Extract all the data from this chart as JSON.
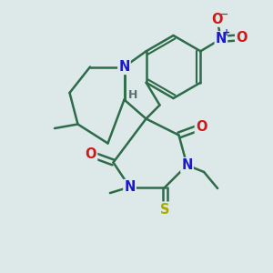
{
  "bg_color": "#dde8e8",
  "bond_color": "#2d6b4a",
  "atom_colors": {
    "N": "#1a1acc",
    "O": "#cc1a1a",
    "S": "#aaaa00",
    "H": "#5a7070",
    "Nplus": "#1a1acc",
    "Ominus": "#cc1a1a"
  },
  "bond_width": 1.8,
  "font_size_atom": 10.5
}
